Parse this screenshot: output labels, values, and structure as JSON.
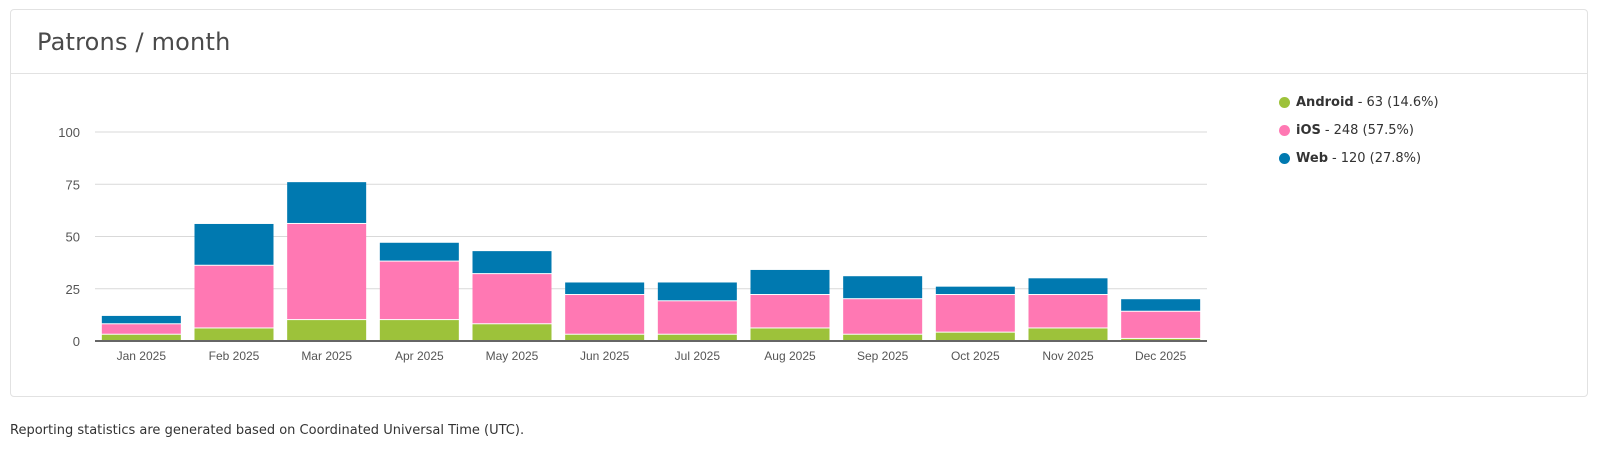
{
  "card": {
    "title": "Patrons / month"
  },
  "footnote": "Reporting statistics are generated based on Coordinated Universal Time (UTC).",
  "legend": [
    {
      "name": "Android",
      "sep": "-",
      "value": "63 (14.6%)",
      "color": "#9dc23a"
    },
    {
      "name": "iOS",
      "sep": "-",
      "value": "248 (57.5%)",
      "color": "#ff78b3"
    },
    {
      "name": "Web",
      "sep": "-",
      "value": "120 (27.8%)",
      "color": "#0079b0"
    }
  ],
  "chart_data": {
    "type": "bar",
    "stacked": true,
    "categories": [
      "Jan 2025",
      "Feb 2025",
      "Mar 2025",
      "Apr 2025",
      "May 2025",
      "Jun 2025",
      "Jul 2025",
      "Aug 2025",
      "Sep 2025",
      "Oct 2025",
      "Nov 2025",
      "Dec 2025"
    ],
    "series": [
      {
        "name": "Android",
        "color": "#9dc23a",
        "values": [
          3,
          6,
          10,
          10,
          8,
          3,
          3,
          6,
          3,
          4,
          6,
          1
        ]
      },
      {
        "name": "iOS",
        "color": "#ff78b3",
        "values": [
          5,
          30,
          46,
          28,
          24,
          19,
          16,
          16,
          17,
          18,
          16,
          13
        ]
      },
      {
        "name": "Web",
        "color": "#0079b0",
        "values": [
          4,
          20,
          20,
          9,
          11,
          6,
          9,
          12,
          11,
          4,
          8,
          6
        ]
      }
    ],
    "yticks": [
      0,
      25,
      50,
      75,
      100
    ],
    "ylim": [
      0,
      100
    ],
    "grid": true,
    "legend_position": "right"
  }
}
